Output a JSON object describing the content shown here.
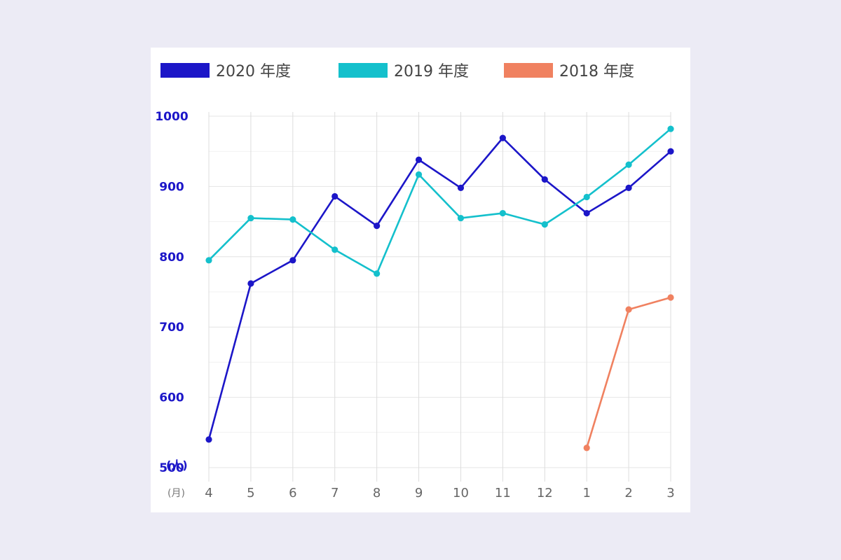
{
  "chart_data": {
    "type": "line",
    "categories": [
      "4",
      "5",
      "6",
      "7",
      "8",
      "9",
      "10",
      "11",
      "12",
      "1",
      "2",
      "3"
    ],
    "x_unit": "(月)",
    "y_unit": "(人)",
    "yticks": [
      500,
      600,
      700,
      800,
      900,
      1000
    ],
    "ylim": [
      500,
      1000
    ],
    "grid": true,
    "legend_position": "top",
    "series": [
      {
        "name": "2020 年度",
        "color": "#1c16c8",
        "values": [
          540,
          762,
          795,
          886,
          844,
          938,
          898,
          969,
          910,
          862,
          898,
          950
        ]
      },
      {
        "name": "2019 年度",
        "color": "#14c0cc",
        "values": [
          795,
          855,
          853,
          810,
          776,
          917,
          855,
          862,
          846,
          885,
          931,
          982
        ]
      },
      {
        "name": "2018 年度",
        "color": "#f08160",
        "values": [
          null,
          null,
          null,
          null,
          null,
          null,
          null,
          null,
          null,
          528,
          725,
          742
        ]
      }
    ]
  }
}
